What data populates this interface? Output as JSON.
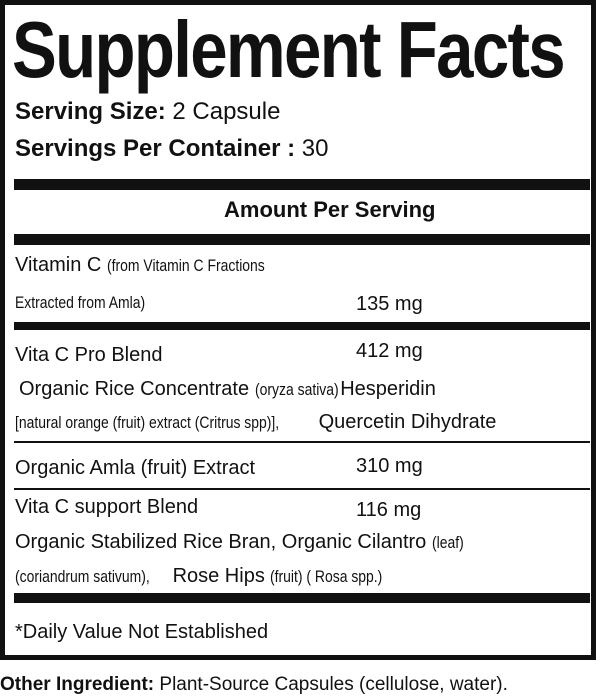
{
  "title": "Supplement Facts",
  "serving_size": {
    "label": "Serving Size:",
    "value": "2 Capsule"
  },
  "servings_per_container": {
    "label": "Servings Per Container :",
    "value": "30"
  },
  "amount_header": "Amount Per Serving",
  "rows": [
    {
      "name": "Vitamin C",
      "detail_1": "(from Vitamin C Fractions",
      "detail_2": "Extracted from Amla)",
      "amount": "135 mg"
    },
    {
      "name": "Vita C Pro Blend",
      "amount": "412 mg",
      "sub_1_a": "Organic Rice Concentrate",
      "sub_1_b": "(oryza sativa)",
      "sub_1_c": "Hesperidin",
      "sub_2_a": "[natural orange (fruit) extract (Critrus spp)],",
      "sub_2_b": "Quercetin Dihydrate"
    },
    {
      "name": "Organic Amla (fruit) Extract",
      "amount": "310 mg"
    },
    {
      "name": "Vita C support Blend",
      "amount": "116 mg",
      "sub_1_a": "Organic Stabilized Rice Bran, Organic Cilantro",
      "sub_1_b": "(leaf)",
      "sub_2_a": "(coriandrum sativum),",
      "sub_2_b": "Rose Hips",
      "sub_2_c": "(fruit) ( Rosa spp.)"
    }
  ],
  "footnote": "*Daily Value Not Established",
  "other_ingredient": {
    "label": "Other Ingredient:",
    "value": "Plant-Source Capsules (cellulose, water)."
  }
}
